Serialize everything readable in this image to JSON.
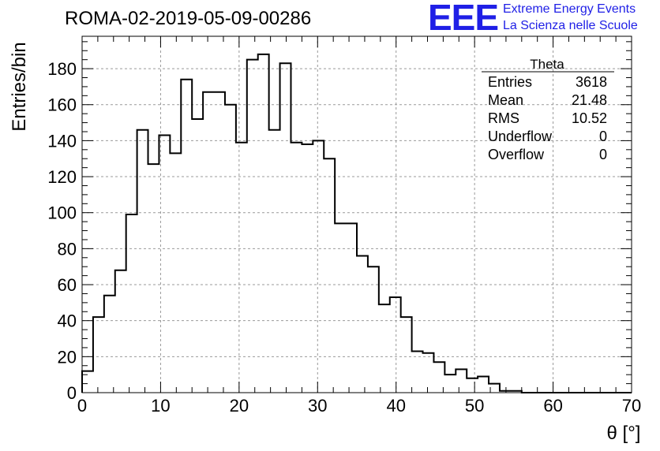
{
  "title": "ROMA-02-2019-05-09-00286",
  "logo": {
    "mark": "EEE",
    "line1": "Extreme Energy Events",
    "line2": "La Scienza nelle Scuole",
    "color": "#1f1fe6"
  },
  "stats_box": {
    "name": "Theta",
    "rows": [
      {
        "label": "Entries",
        "value": "3618"
      },
      {
        "label": "Mean",
        "value": "21.48"
      },
      {
        "label": "RMS",
        "value": "10.52"
      },
      {
        "label": "Underflow",
        "value": "0"
      },
      {
        "label": "Overflow",
        "value": "0"
      }
    ]
  },
  "chart_data": {
    "type": "bar",
    "histogram": true,
    "xlabel": "θ [°]",
    "ylabel": "Entries/bin",
    "xlim": [
      0,
      70
    ],
    "ylim": [
      0,
      198
    ],
    "grid": true,
    "bin_width": 1.4,
    "x_ticks": [
      0,
      10,
      20,
      30,
      40,
      50,
      60,
      70
    ],
    "y_ticks": [
      0,
      20,
      40,
      60,
      80,
      100,
      120,
      140,
      160,
      180
    ],
    "values": [
      12,
      42,
      54,
      68,
      99,
      146,
      127,
      143,
      133,
      174,
      152,
      167,
      167,
      160,
      139,
      185,
      188,
      146,
      183,
      139,
      138,
      140,
      130,
      94,
      94,
      76,
      70,
      49,
      53,
      42,
      23,
      22,
      17,
      10,
      13,
      8,
      9,
      5,
      1,
      1,
      0,
      0,
      0,
      0,
      0,
      0,
      0,
      0,
      0,
      0
    ]
  }
}
